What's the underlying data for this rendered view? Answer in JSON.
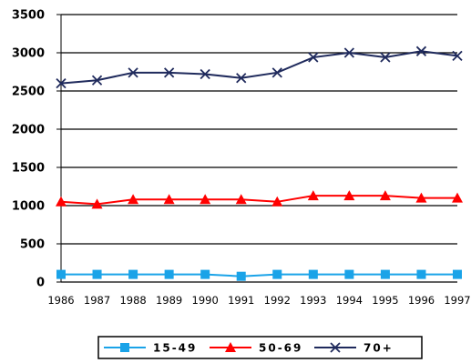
{
  "chart_data": {
    "type": "line",
    "title": "",
    "xlabel": "",
    "ylabel": "",
    "x": [
      "1986",
      "1987",
      "1988",
      "1989",
      "1990",
      "1991",
      "1992",
      "1993",
      "1994",
      "1995",
      "1996",
      "1997"
    ],
    "ylim": [
      0,
      3500
    ],
    "yticks": [
      "0",
      "500",
      "1000",
      "1500",
      "2000",
      "2500",
      "3000",
      "3500"
    ],
    "grid": "horizontal",
    "legend": "bottom",
    "series": [
      {
        "name": "15-49",
        "color": "#1AA3E8",
        "marker": "square",
        "values": [
          100,
          100,
          100,
          100,
          100,
          75,
          100,
          100,
          100,
          100,
          100,
          100
        ]
      },
      {
        "name": "50-69",
        "color": "#FF0000",
        "marker": "triangle",
        "values": [
          1050,
          1020,
          1080,
          1080,
          1080,
          1080,
          1050,
          1130,
          1130,
          1130,
          1100,
          1100
        ]
      },
      {
        "name": "70+",
        "color": "#1F2A5C",
        "marker": "x",
        "values": [
          2600,
          2640,
          2740,
          2740,
          2720,
          2670,
          2740,
          2940,
          3000,
          2940,
          3020,
          2960
        ]
      }
    ]
  }
}
